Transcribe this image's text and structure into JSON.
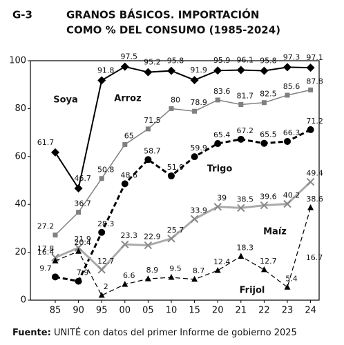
{
  "chart_data": {
    "type": "line",
    "figure_label": "G-3",
    "title_lines": [
      "GRANOS BÁSICOS. IMPORTACIÓN",
      "COMO % DEL CONSUMO (1985-2024)"
    ],
    "categories": [
      "85",
      "90",
      "95",
      "00",
      "05",
      "10",
      "15",
      "20",
      "21",
      "22",
      "23",
      "24"
    ],
    "series": [
      {
        "name": "Soya",
        "color": "#000000",
        "marker": "diamond",
        "dash": false,
        "width": 2,
        "values": [
          61.7,
          46.7,
          91.8,
          97.5,
          95.2,
          95.8,
          91.9,
          95.9,
          96.1,
          95.8,
          97.3,
          97.1
        ]
      },
      {
        "name": "Arroz",
        "color": "#808080",
        "marker": "square",
        "dash": false,
        "width": 1.5,
        "values": [
          27.2,
          36.7,
          50.8,
          65.0,
          71.5,
          80.0,
          78.9,
          83.6,
          81.7,
          82.5,
          85.6,
          87.8
        ]
      },
      {
        "name": "Trigo",
        "color": "#000000",
        "marker": "circle",
        "dash": true,
        "width": 3,
        "values": [
          9.7,
          7.9,
          28.3,
          48.6,
          58.7,
          51.9,
          59.9,
          65.4,
          67.2,
          65.5,
          66.3,
          71.2
        ]
      },
      {
        "name": "Maíz",
        "color": "#aaaaaa",
        "marker": "x",
        "dash": false,
        "width": 3,
        "values": [
          17.8,
          21.9,
          12.7,
          23.3,
          22.9,
          25.7,
          33.9,
          39.0,
          38.5,
          39.6,
          40.2,
          49.4
        ]
      },
      {
        "name": "Frijol",
        "color": "#000000",
        "marker": "triangle",
        "dash": true,
        "width": 1.2,
        "values": [
          16.4,
          20.4,
          2.0,
          6.6,
          8.9,
          9.5,
          8.7,
          12.4,
          18.3,
          12.7,
          5.4,
          38.6
        ]
      }
    ],
    "annotations": [
      "16.7"
    ],
    "ylim": [
      0,
      100
    ],
    "yticks": [
      0,
      20,
      40,
      60,
      80,
      100
    ],
    "source_label": "Fuente:",
    "source": "UNITÉ con datos del primer Informe de gobierno 2025"
  }
}
